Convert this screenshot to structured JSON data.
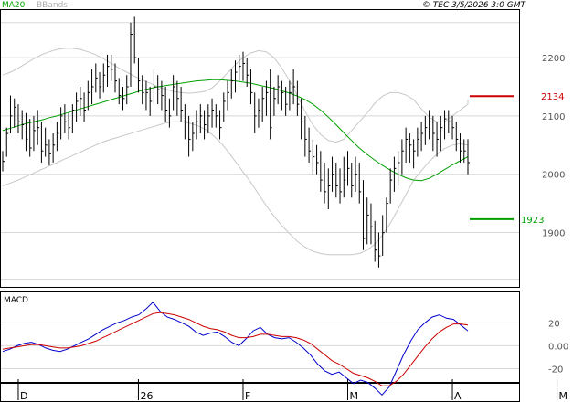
{
  "header": {
    "ma_label": "MA20",
    "bbands_label": "BBands",
    "copyright": "© TEC 3/5/2026 3:0 GMT"
  },
  "panels": {
    "macd_label": "MACD"
  },
  "colors": {
    "ma": "#00a000",
    "bands": "#c8c8c8",
    "macd": "#0000cc",
    "signal": "#cc0000",
    "resistance": "#cc0000",
    "support": "#00a000",
    "bars": "#000000",
    "grid": "#d8d8d8"
  },
  "chart_data": [
    {
      "type": "ohlc",
      "ylim": [
        1810,
        2280
      ],
      "y_ticks": [
        1900,
        2000,
        2100,
        2200
      ],
      "y_tick_labels": [
        "1900",
        "2000",
        "2100",
        "2200"
      ],
      "x_labels": [
        "D",
        "26",
        "F",
        "M",
        "A",
        "M"
      ],
      "x_label_bar_index": [
        4,
        35,
        62,
        89,
        116,
        143
      ],
      "levels": [
        {
          "name": "resistance",
          "value": 2134,
          "label": "2134"
        },
        {
          "name": "support",
          "value": 1923,
          "label": "1923"
        }
      ],
      "bars": [
        {
          "h": 2040,
          "l": 2005,
          "c": 2022
        },
        {
          "h": 2080,
          "l": 2030,
          "c": 2070
        },
        {
          "h": 2135,
          "l": 2070,
          "c": 2100
        },
        {
          "h": 2130,
          "l": 2080,
          "c": 2115
        },
        {
          "h": 2120,
          "l": 2070,
          "c": 2090
        },
        {
          "h": 2110,
          "l": 2060,
          "c": 2085
        },
        {
          "h": 2105,
          "l": 2040,
          "c": 2060
        },
        {
          "h": 2095,
          "l": 2030,
          "c": 2045
        },
        {
          "h": 2100,
          "l": 2040,
          "c": 2075
        },
        {
          "h": 2110,
          "l": 2050,
          "c": 2080
        },
        {
          "h": 2090,
          "l": 2020,
          "c": 2040
        },
        {
          "h": 2080,
          "l": 2030,
          "c": 2050
        },
        {
          "h": 2060,
          "l": 2015,
          "c": 2035
        },
        {
          "h": 2070,
          "l": 2020,
          "c": 2050
        },
        {
          "h": 2090,
          "l": 2040,
          "c": 2070
        },
        {
          "h": 2115,
          "l": 2060,
          "c": 2100
        },
        {
          "h": 2120,
          "l": 2070,
          "c": 2090
        },
        {
          "h": 2105,
          "l": 2060,
          "c": 2080
        },
        {
          "h": 2120,
          "l": 2070,
          "c": 2110
        },
        {
          "h": 2140,
          "l": 2090,
          "c": 2125
        },
        {
          "h": 2150,
          "l": 2100,
          "c": 2130
        },
        {
          "h": 2140,
          "l": 2090,
          "c": 2110
        },
        {
          "h": 2160,
          "l": 2110,
          "c": 2140
        },
        {
          "h": 2180,
          "l": 2120,
          "c": 2150
        },
        {
          "h": 2190,
          "l": 2140,
          "c": 2165
        },
        {
          "h": 2175,
          "l": 2130,
          "c": 2150
        },
        {
          "h": 2190,
          "l": 2140,
          "c": 2170
        },
        {
          "h": 2205,
          "l": 2150,
          "c": 2185
        },
        {
          "h": 2205,
          "l": 2160,
          "c": 2180
        },
        {
          "h": 2190,
          "l": 2140,
          "c": 2160
        },
        {
          "h": 2165,
          "l": 2120,
          "c": 2135
        },
        {
          "h": 2150,
          "l": 2110,
          "c": 2130
        },
        {
          "h": 2170,
          "l": 2120,
          "c": 2150
        },
        {
          "h": 2260,
          "l": 2150,
          "c": 2240
        },
        {
          "h": 2270,
          "l": 2190,
          "c": 2200
        },
        {
          "h": 2200,
          "l": 2140,
          "c": 2160
        },
        {
          "h": 2170,
          "l": 2120,
          "c": 2140
        },
        {
          "h": 2160,
          "l": 2110,
          "c": 2140
        },
        {
          "h": 2150,
          "l": 2100,
          "c": 2125
        },
        {
          "h": 2180,
          "l": 2120,
          "c": 2150
        },
        {
          "h": 2170,
          "l": 2120,
          "c": 2145
        },
        {
          "h": 2160,
          "l": 2110,
          "c": 2135
        },
        {
          "h": 2150,
          "l": 2090,
          "c": 2110
        },
        {
          "h": 2130,
          "l": 2080,
          "c": 2100
        },
        {
          "h": 2170,
          "l": 2110,
          "c": 2150
        },
        {
          "h": 2160,
          "l": 2100,
          "c": 2130
        },
        {
          "h": 2150,
          "l": 2090,
          "c": 2110
        },
        {
          "h": 2120,
          "l": 2060,
          "c": 2090
        },
        {
          "h": 2100,
          "l": 2030,
          "c": 2060
        },
        {
          "h": 2090,
          "l": 2040,
          "c": 2070
        },
        {
          "h": 2110,
          "l": 2060,
          "c": 2090
        },
        {
          "h": 2120,
          "l": 2070,
          "c": 2100
        },
        {
          "h": 2110,
          "l": 2060,
          "c": 2085
        },
        {
          "h": 2120,
          "l": 2070,
          "c": 2100
        },
        {
          "h": 2130,
          "l": 2080,
          "c": 2110
        },
        {
          "h": 2120,
          "l": 2080,
          "c": 2100
        },
        {
          "h": 2110,
          "l": 2060,
          "c": 2080
        },
        {
          "h": 2140,
          "l": 2090,
          "c": 2125
        },
        {
          "h": 2160,
          "l": 2110,
          "c": 2140
        },
        {
          "h": 2180,
          "l": 2130,
          "c": 2160
        },
        {
          "h": 2195,
          "l": 2140,
          "c": 2175
        },
        {
          "h": 2205,
          "l": 2160,
          "c": 2185
        },
        {
          "h": 2210,
          "l": 2160,
          "c": 2190
        },
        {
          "h": 2200,
          "l": 2150,
          "c": 2170
        },
        {
          "h": 2180,
          "l": 2120,
          "c": 2140
        },
        {
          "h": 2140,
          "l": 2070,
          "c": 2100
        },
        {
          "h": 2130,
          "l": 2080,
          "c": 2110
        },
        {
          "h": 2150,
          "l": 2090,
          "c": 2130
        },
        {
          "h": 2160,
          "l": 2100,
          "c": 2140
        },
        {
          "h": 2180,
          "l": 2060,
          "c": 2080
        },
        {
          "h": 2150,
          "l": 2100,
          "c": 2130
        },
        {
          "h": 2170,
          "l": 2120,
          "c": 2150
        },
        {
          "h": 2160,
          "l": 2110,
          "c": 2140
        },
        {
          "h": 2150,
          "l": 2100,
          "c": 2120
        },
        {
          "h": 2160,
          "l": 2110,
          "c": 2140
        },
        {
          "h": 2180,
          "l": 2120,
          "c": 2150
        },
        {
          "h": 2160,
          "l": 2100,
          "c": 2120
        },
        {
          "h": 2130,
          "l": 2060,
          "c": 2090
        },
        {
          "h": 2100,
          "l": 2030,
          "c": 2060
        },
        {
          "h": 2080,
          "l": 2020,
          "c": 2040
        },
        {
          "h": 2060,
          "l": 2000,
          "c": 2030
        },
        {
          "h": 2050,
          "l": 2000,
          "c": 2020
        },
        {
          "h": 2040,
          "l": 1970,
          "c": 1990
        },
        {
          "h": 2020,
          "l": 1950,
          "c": 1970
        },
        {
          "h": 2010,
          "l": 1940,
          "c": 1980
        },
        {
          "h": 2030,
          "l": 1970,
          "c": 2000
        },
        {
          "h": 2020,
          "l": 1960,
          "c": 1980
        },
        {
          "h": 2010,
          "l": 1950,
          "c": 1970
        },
        {
          "h": 2030,
          "l": 1960,
          "c": 1990
        },
        {
          "h": 2040,
          "l": 1980,
          "c": 2010
        },
        {
          "h": 2020,
          "l": 1960,
          "c": 1980
        },
        {
          "h": 2030,
          "l": 1970,
          "c": 2000
        },
        {
          "h": 2020,
          "l": 1950,
          "c": 1970
        },
        {
          "h": 1990,
          "l": 1870,
          "c": 1890
        },
        {
          "h": 1960,
          "l": 1880,
          "c": 1930
        },
        {
          "h": 1950,
          "l": 1880,
          "c": 1910
        },
        {
          "h": 1920,
          "l": 1850,
          "c": 1870
        },
        {
          "h": 1900,
          "l": 1840,
          "c": 1860
        },
        {
          "h": 1930,
          "l": 1860,
          "c": 1900
        },
        {
          "h": 1960,
          "l": 1900,
          "c": 1950
        },
        {
          "h": 2010,
          "l": 1950,
          "c": 1990
        },
        {
          "h": 2030,
          "l": 1970,
          "c": 2010
        },
        {
          "h": 2040,
          "l": 1980,
          "c": 2020
        },
        {
          "h": 2060,
          "l": 2000,
          "c": 2040
        },
        {
          "h": 2080,
          "l": 2020,
          "c": 2060
        },
        {
          "h": 2070,
          "l": 2020,
          "c": 2050
        },
        {
          "h": 2060,
          "l": 2010,
          "c": 2040
        },
        {
          "h": 2080,
          "l": 2030,
          "c": 2060
        },
        {
          "h": 2090,
          "l": 2040,
          "c": 2070
        },
        {
          "h": 2100,
          "l": 2050,
          "c": 2080
        },
        {
          "h": 2110,
          "l": 2060,
          "c": 2090
        },
        {
          "h": 2100,
          "l": 2040,
          "c": 2070
        },
        {
          "h": 2090,
          "l": 2030,
          "c": 2060
        },
        {
          "h": 2100,
          "l": 2040,
          "c": 2080
        },
        {
          "h": 2110,
          "l": 2060,
          "c": 2095
        },
        {
          "h": 2110,
          "l": 2070,
          "c": 2090
        },
        {
          "h": 2100,
          "l": 2060,
          "c": 2080
        },
        {
          "h": 2090,
          "l": 2040,
          "c": 2060
        },
        {
          "h": 2070,
          "l": 2020,
          "c": 2040
        },
        {
          "h": 2060,
          "l": 2020,
          "c": 2040
        },
        {
          "h": 2060,
          "l": 2000,
          "c": 2020
        }
      ],
      "ma20": [
        2075,
        2079,
        2083,
        2087,
        2090,
        2093,
        2097,
        2100,
        2104,
        2108,
        2112,
        2116,
        2120,
        2124,
        2128,
        2132,
        2136,
        2140,
        2144,
        2147,
        2150,
        2152,
        2154,
        2156,
        2158,
        2160,
        2161,
        2162,
        2162,
        2161,
        2160,
        2158,
        2156,
        2153,
        2150,
        2147,
        2143,
        2139,
        2134,
        2128,
        2120,
        2110,
        2098,
        2085,
        2071,
        2058,
        2045,
        2034,
        2024,
        2015,
        2007,
        2000,
        1994,
        1990,
        1989,
        1993,
        2000,
        2008,
        2016,
        2023,
        2030,
        2035,
        2038
      ],
      "bb_upper": [
        2170,
        2175,
        2182,
        2190,
        2198,
        2205,
        2210,
        2214,
        2216,
        2216,
        2214,
        2210,
        2205,
        2198,
        2190,
        2182,
        2175,
        2168,
        2162,
        2156,
        2150,
        2146,
        2142,
        2140,
        2139,
        2140,
        2142,
        2148,
        2160,
        2174,
        2188,
        2200,
        2208,
        2212,
        2210,
        2200,
        2182,
        2160,
        2135,
        2108,
        2085,
        2068,
        2058,
        2055,
        2060,
        2075,
        2090,
        2105,
        2122,
        2134,
        2140,
        2140,
        2136,
        2128,
        2112,
        2098,
        2090,
        2090,
        2100,
        2110,
        2120,
        2128,
        2125
      ],
      "bb_lower": [
        1980,
        1985,
        1990,
        1996,
        2002,
        2008,
        2014,
        2020,
        2026,
        2032,
        2038,
        2044,
        2050,
        2056,
        2060,
        2064,
        2068,
        2072,
        2076,
        2080,
        2084,
        2088,
        2090,
        2090,
        2088,
        2084,
        2078,
        2068,
        2056,
        2040,
        2022,
        2004,
        1986,
        1966,
        1946,
        1928,
        1912,
        1898,
        1885,
        1875,
        1868,
        1864,
        1862,
        1862,
        1862,
        1862,
        1864,
        1870,
        1880,
        1896,
        1916,
        1940,
        1965,
        1990,
        2006,
        2022,
        2034,
        2044,
        2050,
        2052,
        2050,
        2030,
        2010
      ],
      "ma_bb_x_start_bar": 0,
      "ma_bb_x_step_bars": 2
    },
    {
      "type": "line",
      "title": "MACD",
      "ylim": [
        -30,
        45
      ],
      "y_ticks": [
        -20,
        0,
        20
      ],
      "y_tick_labels": [
        "-20",
        "0.00",
        "20"
      ],
      "series": [
        {
          "role": "macd",
          "values": [
            -5,
            -3,
            0,
            2,
            3,
            1,
            -2,
            -4,
            -5,
            -3,
            0,
            3,
            6,
            10,
            14,
            17,
            20,
            22,
            25,
            27,
            32,
            38,
            30,
            25,
            23,
            20,
            17,
            12,
            9,
            11,
            12,
            8,
            3,
            0,
            6,
            13,
            16,
            10,
            7,
            6,
            7,
            3,
            -2,
            -8,
            -16,
            -22,
            -25,
            -23,
            -28,
            -33,
            -30,
            -32,
            -37,
            -43,
            -36,
            -22,
            -8,
            4,
            14,
            20,
            25,
            27,
            24,
            23,
            18,
            13
          ]
        },
        {
          "role": "signal",
          "values": [
            -3,
            -2,
            -1,
            0,
            1,
            1,
            0,
            -1,
            -2,
            -2,
            -1,
            0,
            2,
            4,
            7,
            10,
            13,
            16,
            19,
            22,
            25,
            28,
            29,
            28,
            27,
            25,
            23,
            20,
            17,
            15,
            14,
            12,
            9,
            7,
            7,
            8,
            10,
            10,
            9,
            8,
            8,
            7,
            5,
            2,
            -3,
            -8,
            -13,
            -16,
            -20,
            -24,
            -26,
            -28,
            -31,
            -35,
            -35,
            -31,
            -25,
            -17,
            -9,
            -1,
            6,
            12,
            16,
            19,
            19,
            18
          ]
        }
      ]
    }
  ]
}
